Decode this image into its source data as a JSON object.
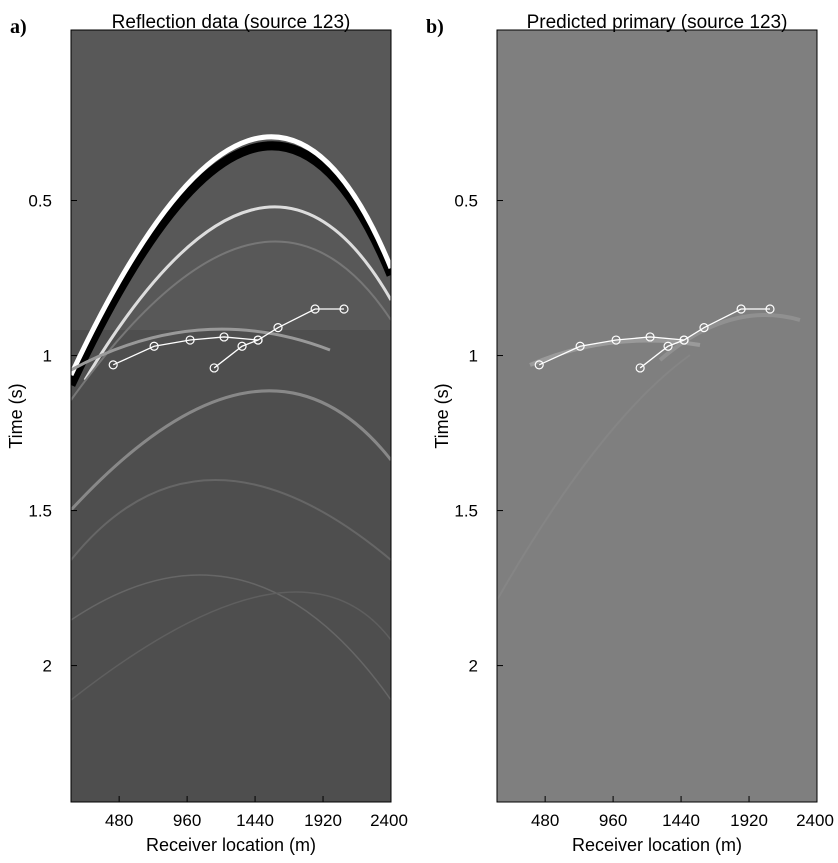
{
  "chart_data": [
    {
      "type": "scatter",
      "panel_label": "a)",
      "title": "Reflection data (source 123)",
      "x_label": "Receiver location (m)",
      "y_label": "Time (s)",
      "xlim": [
        140,
        2400
      ],
      "ylim": [
        -0.05,
        2.44
      ],
      "y_inverted": true,
      "xticks": [
        480,
        960,
        1440,
        1920,
        2400
      ],
      "yticks": [
        0.5,
        1,
        1.5,
        2
      ],
      "series": [
        {
          "color": "#ffffff",
          "x": [
            438,
            727,
            981,
            1221,
            1461
          ],
          "values": [
            1.03,
            0.97,
            0.95,
            0.94,
            0.95
          ]
        },
        {
          "color": "#ffffff",
          "x": [
            1151,
            1348,
            1461,
            1602,
            1864,
            2068
          ],
          "values": [
            1.04,
            0.97,
            0.95,
            0.91,
            0.85,
            0.85
          ]
        }
      ]
    },
    {
      "type": "scatter",
      "panel_label": "b)",
      "title": "Predicted primary (source 123)",
      "x_label": "Receiver location (m)",
      "y_label": "Time (s)",
      "xlim": [
        140,
        2400
      ],
      "ylim": [
        -0.05,
        2.44
      ],
      "y_inverted": true,
      "xticks": [
        480,
        960,
        1440,
        1920,
        2400
      ],
      "yticks": [
        0.5,
        1,
        1.5,
        2
      ],
      "series": [
        {
          "color": "#ffffff",
          "x": [
            438,
            727,
            981,
            1221,
            1461
          ],
          "values": [
            1.03,
            0.97,
            0.95,
            0.94,
            0.95
          ]
        },
        {
          "color": "#ffffff",
          "x": [
            1151,
            1348,
            1461,
            1602,
            1864,
            2068
          ],
          "values": [
            1.04,
            0.97,
            0.95,
            0.91,
            0.85,
            0.85
          ]
        }
      ]
    }
  ]
}
